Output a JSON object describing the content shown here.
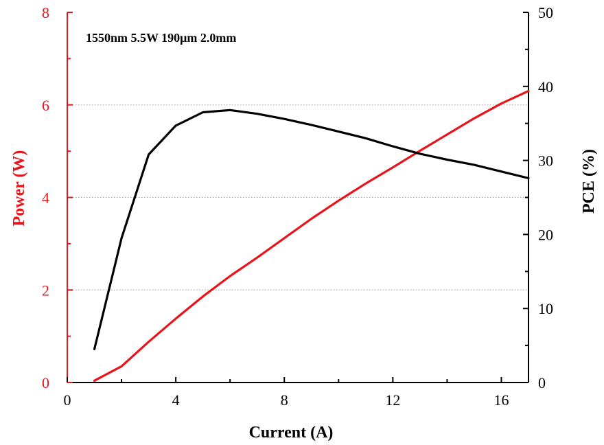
{
  "chart_data": {
    "type": "line",
    "annotation": "1550nm 5.5W 190μm 2.0mm",
    "xlabel": "Current (A)",
    "ylabel_left": "Power (W)",
    "ylabel_right": "PCE (%)",
    "xlim": [
      0,
      17
    ],
    "ylim_left": [
      0,
      8
    ],
    "ylim_right": [
      0,
      50
    ],
    "xticks": [
      0,
      4,
      8,
      12,
      16
    ],
    "xtick_labels": [
      "0",
      "4",
      "8",
      "12",
      "16"
    ],
    "yticks_left": [
      0,
      2,
      4,
      6,
      8
    ],
    "ytick_labels_left": [
      "0",
      "2",
      "4",
      "6",
      "8"
    ],
    "yticks_right": [
      0,
      10,
      20,
      30,
      40,
      50
    ],
    "ytick_labels_right": [
      "0",
      "10",
      "20",
      "30",
      "40",
      "50"
    ],
    "grid": "horizontal dotted at left-axis ticks",
    "colors": {
      "power": "#e8141b",
      "pce": "#000000",
      "left_axis": "#e8141b",
      "right_axis": "#000000"
    },
    "series": [
      {
        "axis": "left",
        "color": "#e8141b",
        "x": [
          1,
          2,
          3,
          4,
          5,
          6,
          7,
          8,
          9,
          10,
          11,
          12,
          13,
          14,
          15,
          16,
          17
        ],
        "values": [
          0.04,
          0.35,
          0.88,
          1.38,
          1.86,
          2.3,
          2.7,
          3.12,
          3.54,
          3.93,
          4.3,
          4.65,
          5.01,
          5.36,
          5.71,
          6.03,
          6.3
        ]
      },
      {
        "axis": "right",
        "color": "#000000",
        "x": [
          1,
          2,
          3,
          4,
          5,
          6,
          7,
          8,
          9,
          10,
          11,
          12,
          13,
          14,
          15,
          16,
          17
        ],
        "values": [
          4.5,
          19.5,
          30.8,
          34.7,
          36.5,
          36.8,
          36.3,
          35.6,
          34.8,
          33.9,
          33.0,
          31.9,
          30.9,
          30.1,
          29.4,
          28.5,
          27.6
        ]
      }
    ]
  }
}
